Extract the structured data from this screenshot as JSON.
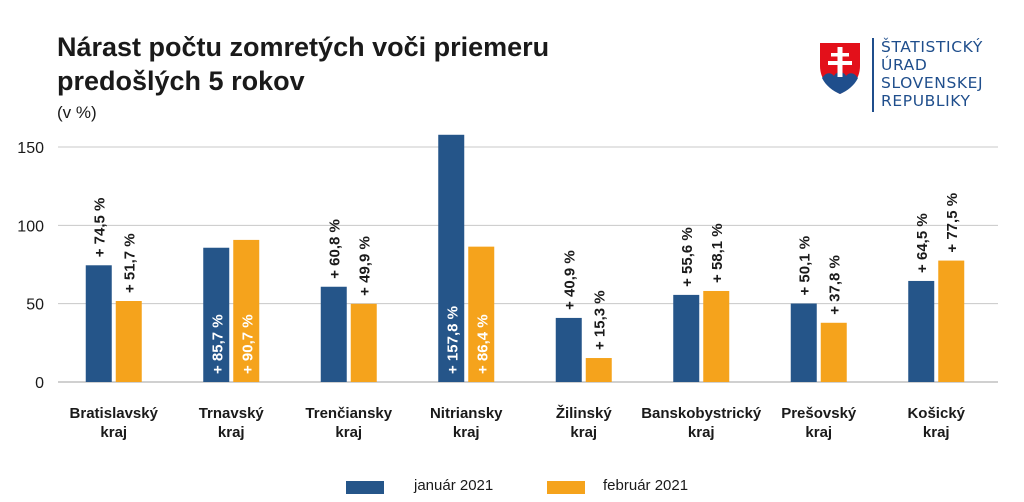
{
  "chart_data": {
    "type": "bar",
    "title_lines": [
      "Nárast počtu zomretých voči priemeru",
      "predošlých 5 rokov"
    ],
    "unit_label": "(v %)",
    "categories": [
      [
        "Bratislavský",
        "kraj"
      ],
      [
        "Trnavský",
        "kraj"
      ],
      [
        "Trenčiansky",
        "kraj"
      ],
      [
        "Nitriansky",
        "kraj"
      ],
      [
        "Žilinský",
        "kraj"
      ],
      [
        "Banskobystrický",
        "kraj"
      ],
      [
        "Prešovský",
        "kraj"
      ],
      [
        "Košický",
        "kraj"
      ]
    ],
    "series": [
      {
        "name": "január 2021",
        "color": "#255589",
        "values": [
          74.5,
          85.7,
          60.8,
          157.8,
          40.9,
          55.6,
          50.1,
          64.5
        ],
        "labels": [
          "+ 74,5 %",
          "+ 85,7 %",
          "+ 60,8 %",
          "+ 157,8 %",
          "+ 40,9 %",
          "+ 55,6 %",
          "+ 50,1 %",
          "+ 64,5 %"
        ]
      },
      {
        "name": "február 2021",
        "color": "#f5a31c",
        "values": [
          51.7,
          90.7,
          49.9,
          86.4,
          15.3,
          58.1,
          37.8,
          77.5
        ],
        "labels": [
          "+ 51,7 %",
          "+ 90,7 %",
          "+ 49,9 %",
          "+ 86,4 %",
          "+ 15,3 %",
          "+ 58,1 %",
          "+ 37,8 %",
          "+ 77,5 %"
        ]
      }
    ],
    "y_ticks": [
      "0",
      "50",
      "100",
      "150"
    ],
    "ylim": [
      0,
      160
    ],
    "grid": true,
    "legend_position": "bottom-center"
  },
  "logo": {
    "text_lines": [
      "ŠTATISTICKÝ",
      "ÚRAD",
      "SLOVENSKEJ",
      "REPUBLIKY"
    ],
    "shield_red": "#e3101a",
    "shield_blue": "#1f4e8c"
  },
  "colors": {
    "grid": "#c8c8c8",
    "axis": "#a0a0a0"
  }
}
